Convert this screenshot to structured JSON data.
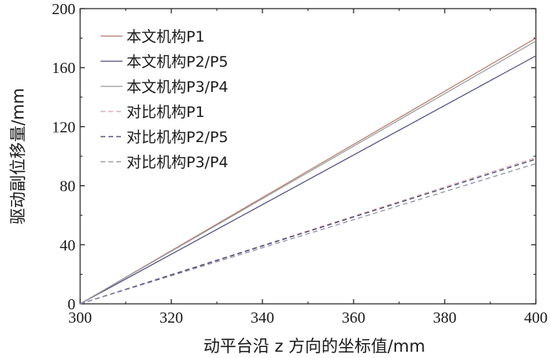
{
  "chart_data": {
    "type": "line",
    "title": "",
    "xlabel": "动平台沿 z 方向的坐标值/mm",
    "ylabel": "驱动副位移量/mm",
    "xlim": [
      300,
      400
    ],
    "ylim": [
      0,
      200
    ],
    "xticks": [
      300,
      320,
      340,
      360,
      380,
      400
    ],
    "yticks": [
      0,
      40,
      80,
      120,
      160,
      200
    ],
    "grid": false,
    "legend_position": "top-left",
    "series": [
      {
        "name": "本文机构P1",
        "x": [
          300,
          400
        ],
        "y": [
          0,
          180
        ],
        "color": "#b5776a",
        "dash": "solid"
      },
      {
        "name": "本文机构P2/P5",
        "x": [
          300,
          400
        ],
        "y": [
          0,
          168
        ],
        "color": "#4a4a7a",
        "dash": "solid"
      },
      {
        "name": "本文机构P3/P4",
        "x": [
          300,
          400
        ],
        "y": [
          0,
          178
        ],
        "color": "#9a9a9a",
        "dash": "solid"
      },
      {
        "name": "对比机构P1",
        "x": [
          300,
          400
        ],
        "y": [
          0,
          99
        ],
        "color": "#d0a0a8",
        "dash": "dashed"
      },
      {
        "name": "对比机构P2/P5",
        "x": [
          300,
          400
        ],
        "y": [
          0,
          98
        ],
        "color": "#3a3a6a",
        "dash": "dashed"
      },
      {
        "name": "对比机构P3/P4",
        "x": [
          300,
          400
        ],
        "y": [
          0,
          95
        ],
        "color": "#8a8aa8",
        "dash": "dashed"
      }
    ]
  }
}
